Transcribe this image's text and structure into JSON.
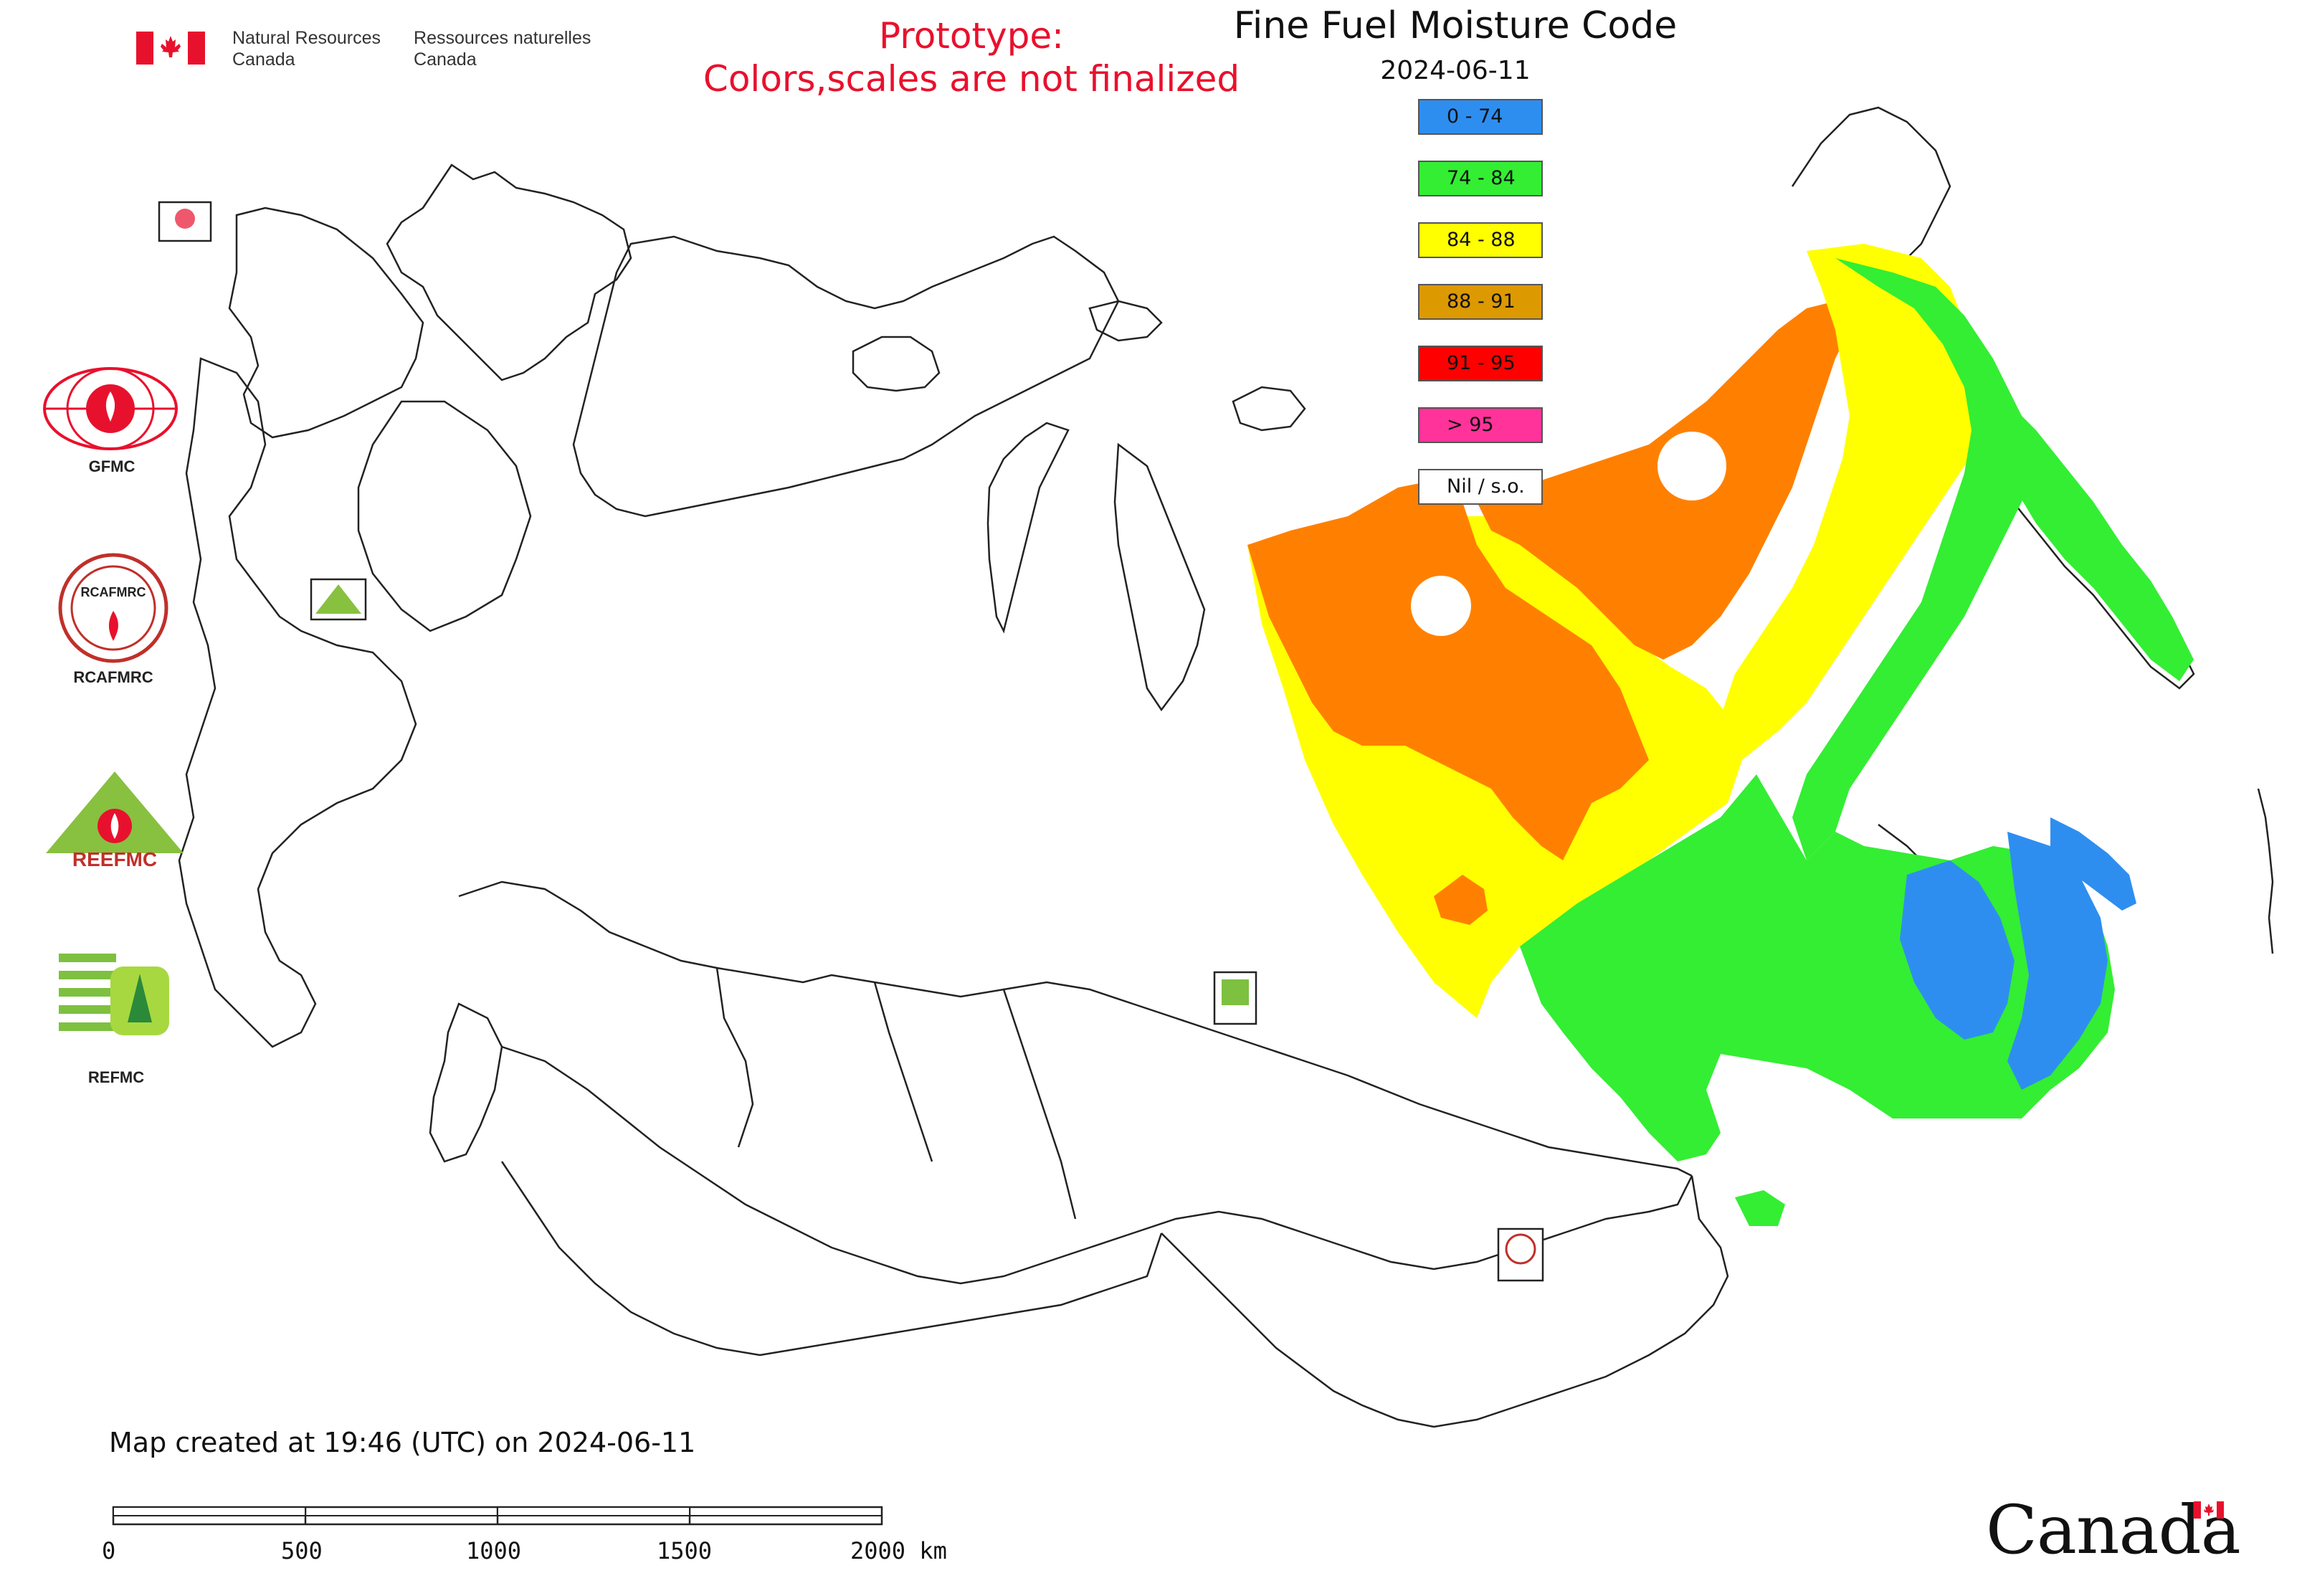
{
  "header": {
    "gov_en_line1": "Natural Resources",
    "gov_en_line2": "Canada",
    "gov_fr_line1": "Ressources naturelles",
    "gov_fr_line2": "Canada",
    "prototype_line1": "Prototype:",
    "prototype_line2": "Colors,scales are not finalized",
    "title": "Fine Fuel Moisture Code",
    "date": "2024-06-11"
  },
  "legend": [
    {
      "label": "0 - 74",
      "color": "#2e8ef0"
    },
    {
      "label": "74 - 84",
      "color": "#33ee33"
    },
    {
      "label": "84 - 88",
      "color": "#ffff00"
    },
    {
      "label": "88 - 91",
      "color": "#dd9900"
    },
    {
      "label": "91 - 95",
      "color": "#ff0000"
    },
    {
      "label": "> 95",
      "color": "#ff3399"
    },
    {
      "label": "Nil / s.o.",
      "color": "#ffffff"
    }
  ],
  "logos": {
    "gfmc": "GFMC",
    "rcafmrc": "RCAFMRC",
    "reefmc": "REEFMC",
    "refmc": "REFMC"
  },
  "footer": {
    "created": "Map created at 19:46 (UTC) on 2024-06-11",
    "scale_ticks": [
      "0",
      "500",
      "1000",
      "1500",
      "2000 km"
    ],
    "wordmark": "Canada"
  },
  "colors": {
    "accent_red": "#e8112d",
    "orange": "#ff8000",
    "yellow": "#ffff00",
    "green": "#33ee33",
    "blue": "#2e8ef0"
  }
}
